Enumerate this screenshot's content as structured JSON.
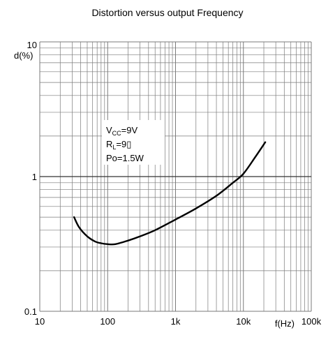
{
  "chart_data": {
    "type": "line",
    "title": "Distortion versus output Frequency",
    "xlabel": "f(Hz)",
    "ylabel": "d(%)",
    "x_scale": "log",
    "y_scale": "log",
    "xlim": [
      10,
      100000
    ],
    "ylim": [
      0.1,
      10
    ],
    "x_ticks": [
      {
        "value": 10,
        "label": "10"
      },
      {
        "value": 100,
        "label": "100"
      },
      {
        "value": 1000,
        "label": "1k"
      },
      {
        "value": 10000,
        "label": "10k"
      },
      {
        "value": 100000,
        "label": "100k"
      }
    ],
    "y_ticks": [
      {
        "value": 0.1,
        "label": "0.1"
      },
      {
        "value": 1,
        "label": "1"
      },
      {
        "value": 10,
        "label": "10"
      }
    ],
    "grid": true,
    "series": [
      {
        "x": [
          32,
          38,
          50,
          65,
          80,
          100,
          130,
          200,
          300,
          500,
          1000,
          2000,
          4000,
          7000,
          10000,
          15000,
          21000
        ],
        "y": [
          0.5,
          0.42,
          0.36,
          0.33,
          0.32,
          0.315,
          0.315,
          0.335,
          0.36,
          0.4,
          0.48,
          0.58,
          0.72,
          0.9,
          1.05,
          1.4,
          1.8
        ]
      }
    ],
    "annotations": [
      {
        "main": "V",
        "sub": "CC",
        "rest": "=9V"
      },
      {
        "main": "R",
        "sub": "L",
        "rest": "=9▯"
      },
      {
        "main": "Po=1.5W",
        "sub": "",
        "rest": ""
      }
    ],
    "colors": {
      "grid": "#7a7a7a",
      "curve": "#000000",
      "background": "#ffffff"
    }
  }
}
